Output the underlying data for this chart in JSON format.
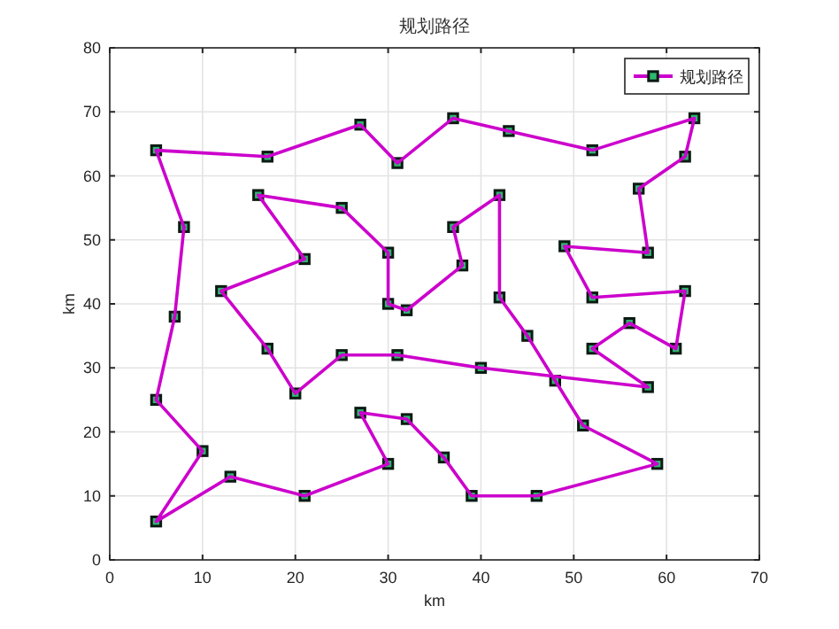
{
  "chart_data": {
    "type": "line",
    "title": "规划路径",
    "xlabel": "km",
    "ylabel": "km",
    "xlim": [
      0,
      70
    ],
    "ylim": [
      0,
      80
    ],
    "xticks": [
      0,
      10,
      20,
      30,
      40,
      50,
      60,
      70
    ],
    "yticks": [
      0,
      10,
      20,
      30,
      40,
      50,
      60,
      70,
      80
    ],
    "grid": true,
    "legend": "top right",
    "marker": "square",
    "line_style": "solid",
    "series": [
      {
        "name": "规划路径",
        "color": "#cc00cc",
        "x": [
          5,
          17,
          27,
          31,
          37,
          43,
          52,
          63,
          62,
          57,
          58,
          49,
          52,
          62,
          61,
          56,
          52,
          58,
          40,
          31,
          25,
          20,
          17,
          12,
          21,
          16,
          25,
          30,
          30,
          32,
          38,
          37,
          42,
          42,
          45,
          48,
          51,
          59,
          46,
          39,
          36,
          32,
          27,
          30,
          21,
          13,
          5,
          10,
          5,
          7,
          8
        ],
        "values": [
          64,
          63,
          68,
          62,
          69,
          67,
          64,
          69,
          63,
          58,
          48,
          49,
          41,
          42,
          33,
          37,
          33,
          27,
          30,
          32,
          32,
          26,
          33,
          42,
          47,
          57,
          55,
          48,
          40,
          39,
          46,
          52,
          57,
          41,
          35,
          28,
          21,
          15,
          10,
          10,
          16,
          22,
          23,
          15,
          10,
          13,
          6,
          17,
          25,
          38,
          52
        ]
      },
      {
        "color": "#cc00cc",
        "marker": "none",
        "x": [
          8,
          5
        ],
        "values": [
          52,
          64
        ]
      }
    ]
  }
}
